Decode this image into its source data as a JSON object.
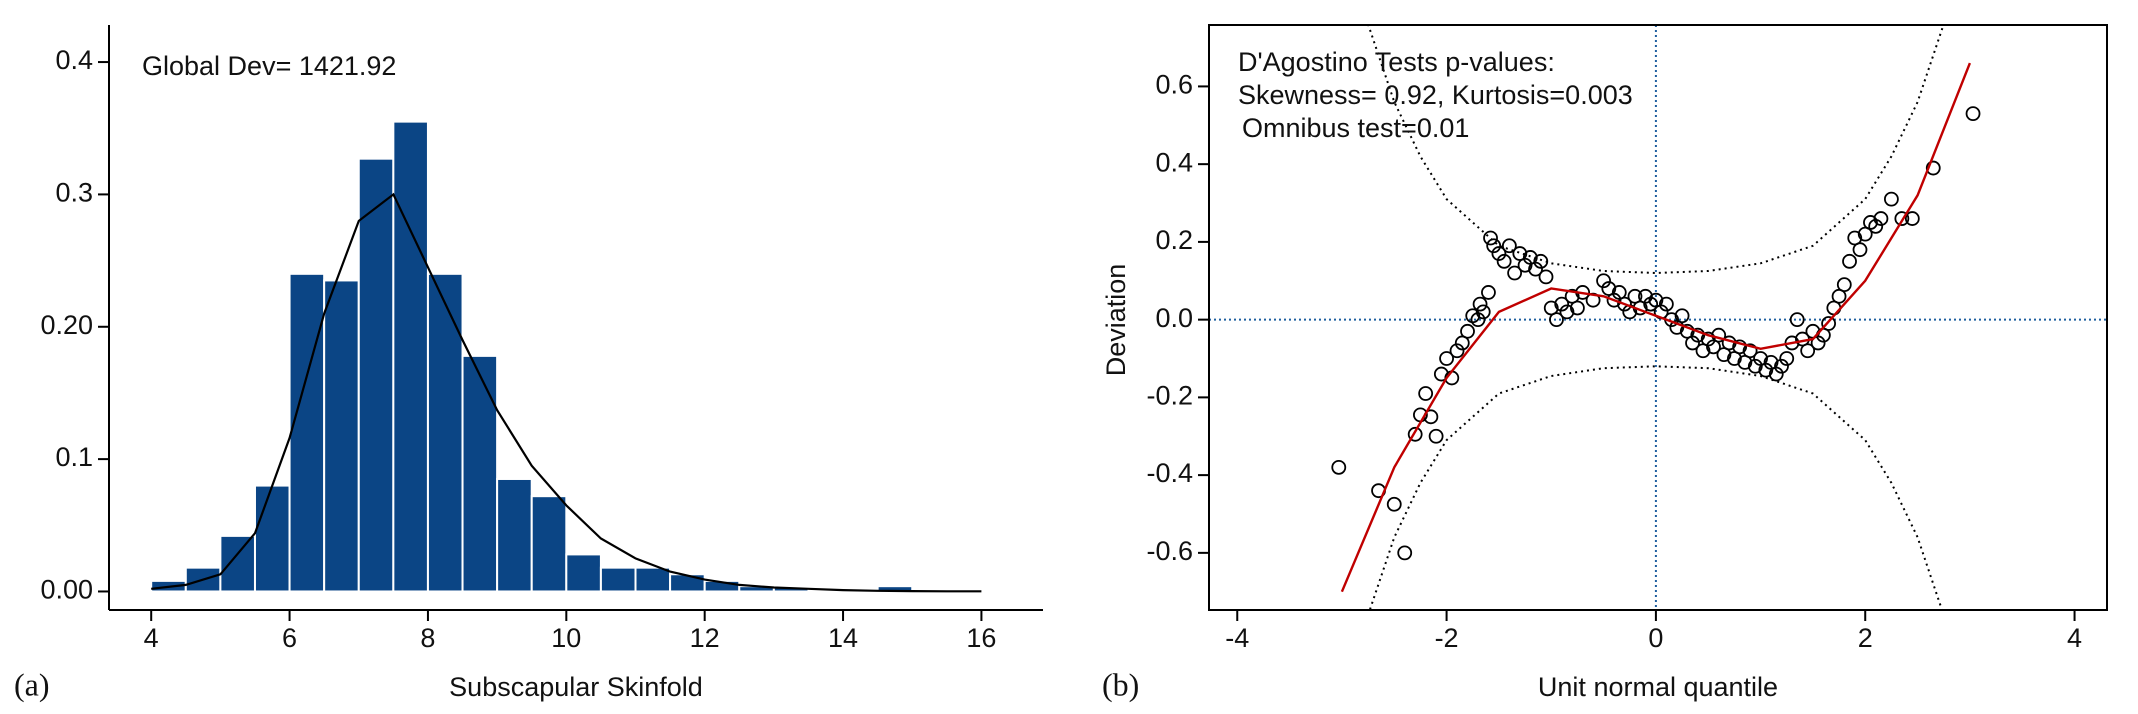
{
  "chart_data": [
    {
      "type": "histogram",
      "panel_label": "(a)",
      "xlabel": "Subscapular Skinfold",
      "annotation": "Global Dev= 1421.92",
      "bins": [
        4,
        4.5,
        5,
        5.5,
        6,
        6.5,
        7,
        7.5,
        8,
        8.5,
        9,
        9.5,
        10,
        10.5,
        11,
        11.5,
        12,
        12.5,
        13,
        13.5,
        14,
        14.5,
        15
      ],
      "values": [
        0.008,
        0.018,
        0.042,
        0.08,
        0.24,
        0.235,
        0.327,
        0.355,
        0.24,
        0.178,
        0.085,
        0.072,
        0.028,
        0.018,
        0.018,
        0.013,
        0.008,
        0.004,
        0.003,
        0,
        0,
        0.004
      ],
      "color": "#0b4585",
      "density": {
        "color": "#000000",
        "x": [
          4,
          4.5,
          5,
          5.5,
          6,
          6.5,
          7,
          7.5,
          8,
          8.5,
          9,
          9.5,
          10,
          10.5,
          11,
          11.5,
          12,
          12.5,
          13,
          13.5,
          14,
          14.5,
          15,
          15.5,
          16
        ],
        "values": [
          0.002,
          0.005,
          0.013,
          0.044,
          0.116,
          0.21,
          0.28,
          0.3,
          0.245,
          0.19,
          0.137,
          0.095,
          0.065,
          0.04,
          0.025,
          0.015,
          0.009,
          0.005,
          0.003,
          0.002,
          0.001,
          0.0005,
          0.0003,
          0.0001,
          0.0001
        ]
      },
      "xlim": [
        3.39,
        16.89
      ],
      "xticks": [
        4,
        6,
        8,
        10,
        12,
        14,
        16
      ],
      "ylim": [
        -0.014,
        0.428
      ],
      "yticks": [
        {
          "value": 0,
          "label": "0.00"
        },
        0.1,
        {
          "value": 0.2,
          "label": "0.20"
        },
        0.3,
        0.4
      ],
      "frame": false
    },
    {
      "type": "scatter",
      "panel_label": "(b)",
      "xlabel": "Unit normal quantile",
      "ylabel": "Deviation",
      "annotations": [
        "D'Agostino Tests p-values:",
        "Skewness= 0.92, Kurtosis=0.003",
        "Omnibus test=0.01"
      ],
      "xlim": [
        -4.27,
        4.31
      ],
      "xticks": [
        -4,
        -2,
        0,
        2,
        4
      ],
      "ylim": [
        -0.747,
        0.758
      ],
      "yticks": [
        -0.6,
        -0.4,
        -0.2,
        {
          "value": 0,
          "label": "0.0"
        },
        0.2,
        0.4,
        0.6
      ],
      "frame": true,
      "hline": 0,
      "vline": 0,
      "reference_color": "#1f5f9f",
      "series": [
        {
          "kind": "points",
          "color": "#000000",
          "x": [
            -3.03,
            -2.65,
            -2.5,
            -2.4,
            -2.3,
            -2.25,
            -2.2,
            -2.15,
            -2.1,
            -2.05,
            -2.0,
            -1.95,
            -1.9,
            -1.85,
            -1.8,
            -1.75,
            -1.7,
            -1.68,
            -1.65,
            -1.6,
            -1.58,
            -1.55,
            -1.5,
            -1.45,
            -1.4,
            -1.35,
            -1.3,
            -1.25,
            -1.2,
            -1.15,
            -1.1,
            -1.05,
            -1.0,
            -0.95,
            -0.9,
            -0.85,
            -0.8,
            -0.75,
            -0.7,
            -0.6,
            -0.5,
            -0.45,
            -0.4,
            -0.35,
            -0.3,
            -0.25,
            -0.2,
            -0.15,
            -0.1,
            -0.05,
            0.0,
            0.05,
            0.1,
            0.15,
            0.2,
            0.25,
            0.3,
            0.35,
            0.4,
            0.45,
            0.5,
            0.55,
            0.6,
            0.65,
            0.7,
            0.75,
            0.8,
            0.85,
            0.9,
            0.95,
            1.0,
            1.05,
            1.1,
            1.15,
            1.2,
            1.25,
            1.3,
            1.35,
            1.4,
            1.45,
            1.5,
            1.55,
            1.6,
            1.65,
            1.7,
            1.75,
            1.8,
            1.85,
            1.9,
            1.95,
            2.0,
            2.05,
            2.1,
            2.15,
            2.25,
            2.35,
            2.45,
            2.65,
            3.03
          ],
          "values": [
            -0.38,
            -0.44,
            -0.475,
            -0.6,
            -0.295,
            -0.245,
            -0.19,
            -0.25,
            -0.3,
            -0.14,
            -0.1,
            -0.15,
            -0.08,
            -0.06,
            -0.03,
            0.01,
            0.0,
            0.04,
            0.02,
            0.07,
            0.21,
            0.19,
            0.17,
            0.15,
            0.19,
            0.12,
            0.17,
            0.14,
            0.16,
            0.13,
            0.15,
            0.11,
            0.03,
            0.0,
            0.04,
            0.02,
            0.06,
            0.03,
            0.07,
            0.05,
            0.1,
            0.08,
            0.05,
            0.07,
            0.04,
            0.02,
            0.06,
            0.03,
            0.06,
            0.04,
            0.05,
            0.02,
            0.04,
            0.0,
            -0.02,
            0.01,
            -0.03,
            -0.06,
            -0.04,
            -0.08,
            -0.05,
            -0.07,
            -0.04,
            -0.09,
            -0.06,
            -0.1,
            -0.07,
            -0.11,
            -0.08,
            -0.12,
            -0.1,
            -0.13,
            -0.11,
            -0.14,
            -0.12,
            -0.1,
            -0.06,
            0.0,
            -0.05,
            -0.08,
            -0.03,
            -0.06,
            -0.04,
            -0.01,
            0.03,
            0.06,
            0.09,
            0.15,
            0.21,
            0.18,
            0.22,
            0.25,
            0.24,
            0.26,
            0.31,
            0.26,
            0.26,
            0.39,
            0.53
          ]
        },
        {
          "kind": "line",
          "color": "#c00000",
          "x": [
            -3,
            -2.5,
            -2,
            -1.5,
            -1,
            -0.5,
            0,
            0.5,
            1,
            1.5,
            2,
            2.5,
            3
          ],
          "values": [
            -0.7,
            -0.38,
            -0.15,
            0.02,
            0.08,
            0.06,
            0.01,
            -0.04,
            -0.075,
            -0.05,
            0.1,
            0.32,
            0.66
          ]
        },
        {
          "kind": "dotted",
          "color": "#000000",
          "x": [
            -2.75,
            -2.5,
            -2.25,
            -2,
            -1.5,
            -1,
            -0.5,
            0,
            0.5,
            1,
            1.5,
            2,
            2.25,
            2.5,
            2.75
          ],
          "values": [
            0.76,
            0.56,
            0.42,
            0.31,
            0.19,
            0.145,
            0.125,
            0.12,
            0.125,
            0.145,
            0.19,
            0.31,
            0.42,
            0.56,
            0.76
          ]
        },
        {
          "kind": "dotted",
          "color": "#000000",
          "x": [
            -2.75,
            -2.5,
            -2.25,
            -2,
            -1.5,
            -1,
            -0.5,
            0,
            0.5,
            1,
            1.5,
            2,
            2.25,
            2.5,
            2.75
          ],
          "values": [
            -0.76,
            -0.56,
            -0.42,
            -0.31,
            -0.19,
            -0.145,
            -0.125,
            -0.12,
            -0.125,
            -0.145,
            -0.19,
            -0.31,
            -0.42,
            -0.56,
            -0.76
          ]
        }
      ]
    }
  ]
}
